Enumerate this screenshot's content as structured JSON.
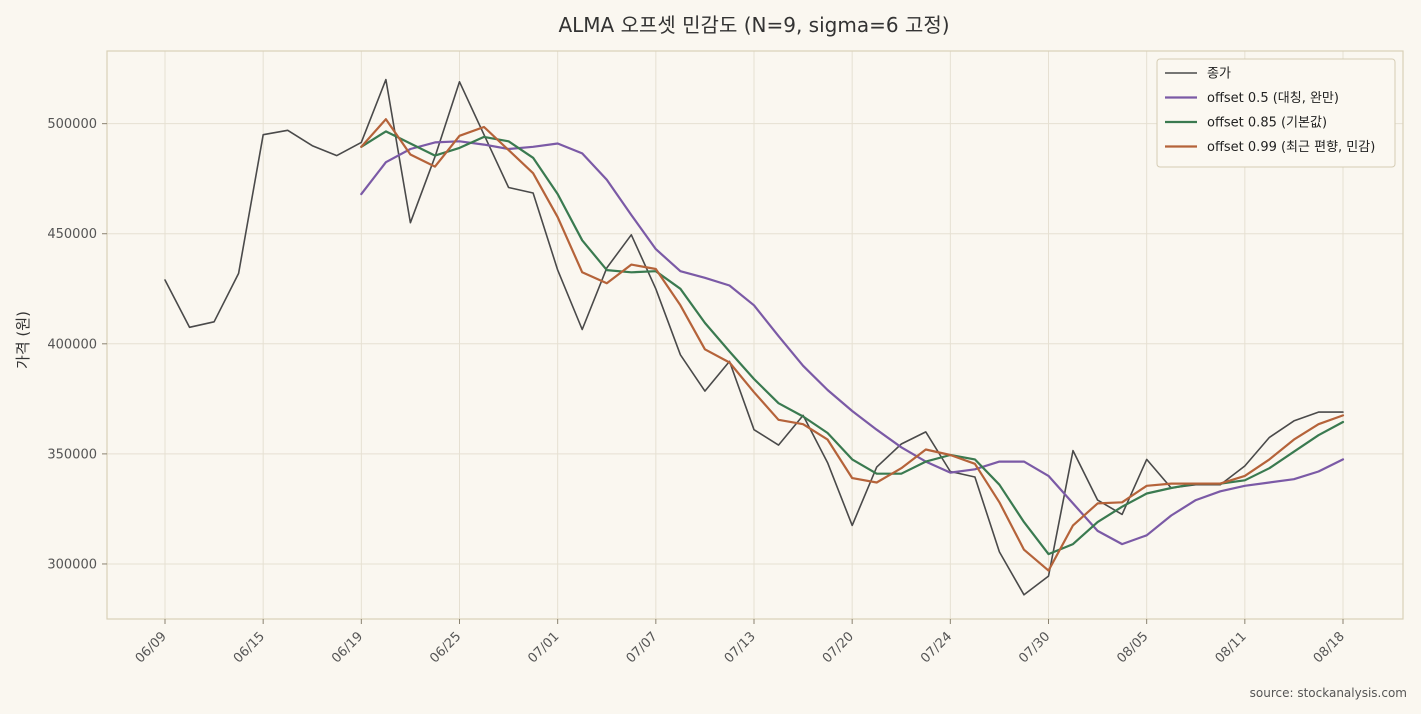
{
  "chart_data": {
    "type": "line",
    "title": "ALMA 오프셋 민감도 (N=9, sigma=6 고정)",
    "xlabel": "",
    "ylabel": "가격 (원)",
    "ylim": [
      275000,
      533000
    ],
    "yticks": [
      300000,
      350000,
      400000,
      450000,
      500000
    ],
    "xtick_labels": [
      "06/09",
      "06/15",
      "06/19",
      "06/25",
      "07/01",
      "07/07",
      "07/13",
      "07/20",
      "07/24",
      "07/30",
      "08/05",
      "08/11",
      "08/18"
    ],
    "xtick_index": [
      0,
      4,
      8,
      12,
      16,
      20,
      24,
      28,
      32,
      36,
      40,
      44,
      48
    ],
    "grid": true,
    "legend_position": "top-right",
    "source": "source: stockanalysis.com",
    "colors": {
      "background": "#faf7f0",
      "plot_border": "#d9d0b8",
      "grid": "#e6e0d2"
    },
    "series": [
      {
        "name": "종가",
        "color": "#4a4a4a",
        "width": 1.6,
        "start": 0,
        "values": [
          429000,
          407500,
          410000,
          432000,
          495000,
          497000,
          490000,
          485500,
          491500,
          520000,
          455000,
          485000,
          519000,
          495000,
          471000,
          468500,
          433500,
          406500,
          434500,
          449500,
          425000,
          395000,
          378500,
          392000,
          361000,
          354000,
          367500,
          346000,
          317500,
          344000,
          354500,
          360000,
          342000,
          339500,
          305500,
          286000,
          294500,
          351500,
          329000,
          322500,
          347500,
          334500,
          336000,
          336000,
          344500,
          357500,
          365000,
          369000,
          369000
        ]
      },
      {
        "name": "offset 0.5 (대칭, 완만)",
        "color": "#7b5aa6",
        "width": 2.2,
        "start": 8,
        "values": [
          468000,
          482500,
          488500,
          491500,
          492000,
          490500,
          488500,
          489500,
          491000,
          486500,
          474500,
          458500,
          443000,
          433000,
          430000,
          426500,
          417500,
          403500,
          390000,
          379000,
          369500,
          361000,
          353000,
          346500,
          341500,
          343000,
          346500,
          346500,
          340000,
          327500,
          315000,
          309000,
          313000,
          322000,
          329000,
          333000,
          335500,
          337000,
          338500,
          342000,
          347500
        ]
      },
      {
        "name": "offset 0.85 (기본값)",
        "color": "#3a7a50",
        "width": 2.2,
        "start": 8,
        "values": [
          489500,
          496500,
          491000,
          485500,
          489000,
          494000,
          492000,
          484500,
          468000,
          447000,
          433500,
          432500,
          433000,
          425000,
          409500,
          396500,
          384000,
          373000,
          367000,
          359500,
          347500,
          341000,
          341000,
          346500,
          349500,
          347500,
          336000,
          319000,
          304500,
          309000,
          319000,
          326000,
          332000,
          334500,
          336500,
          336500,
          338000,
          343500,
          351000,
          358500,
          364500
        ]
      },
      {
        "name": "offset 0.99 (최근 편향, 민감)",
        "color": "#b5633a",
        "width": 2.2,
        "start": 8,
        "values": [
          489500,
          502000,
          486000,
          480500,
          494500,
          498500,
          488000,
          477500,
          457500,
          432500,
          427500,
          436000,
          434000,
          417500,
          397500,
          391500,
          378000,
          365500,
          363500,
          356500,
          339000,
          337000,
          343500,
          352000,
          349500,
          345500,
          328000,
          306500,
          297000,
          317500,
          327500,
          328000,
          335500,
          336500,
          336500,
          336500,
          340000,
          347500,
          356500,
          363500,
          367500
        ]
      }
    ]
  }
}
